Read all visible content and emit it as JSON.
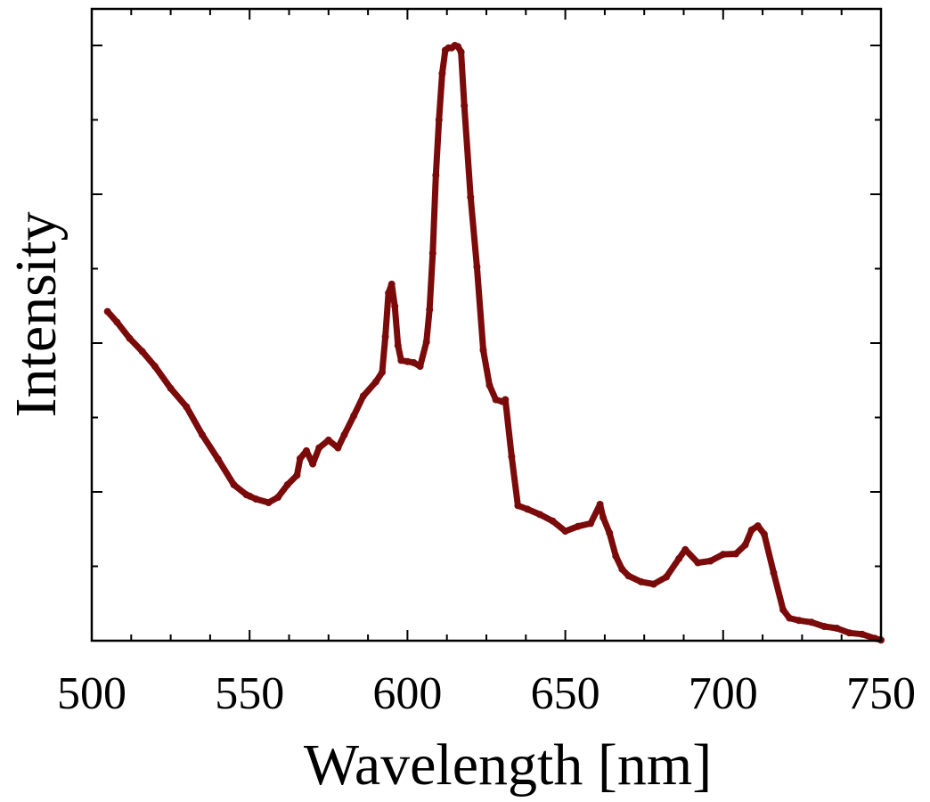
{
  "chart_data": {
    "type": "scatter",
    "title": "",
    "xlabel": "Wavelength [nm]",
    "ylabel": "Intensity",
    "xlim": [
      500,
      750
    ],
    "ylim": [
      0,
      1.0
    ],
    "x_major_ticks": [
      "500",
      "550",
      "600",
      "650",
      "700",
      "750"
    ],
    "x_minor_step": 12.5,
    "y_major_count": 5,
    "y_minor_per_major": 2,
    "grid": false,
    "legend": "none",
    "series_color": "#7b0a0a",
    "series": [
      {
        "x": [
          505,
          508,
          512,
          516,
          520,
          525,
          530,
          535,
          540,
          545,
          549,
          550,
          552,
          556,
          559,
          562,
          565,
          566,
          568,
          570,
          572,
          575,
          578,
          580,
          583,
          586,
          590,
          592,
          593,
          594,
          595,
          596,
          597,
          598,
          600,
          602,
          604,
          606,
          607,
          608,
          609,
          610,
          611,
          612,
          613,
          614,
          615,
          616,
          617,
          618,
          620,
          622,
          624,
          626,
          628,
          630,
          631,
          633,
          635,
          638,
          642,
          646,
          650,
          654,
          658,
          661,
          662,
          664,
          666,
          668,
          670,
          674,
          678,
          682,
          686,
          688,
          692,
          696,
          700,
          704,
          707,
          709,
          711,
          713,
          716,
          719,
          721,
          724,
          728,
          732,
          736,
          740,
          744,
          748,
          750
        ],
        "y": [
          0.553,
          0.535,
          0.508,
          0.486,
          0.461,
          0.424,
          0.393,
          0.346,
          0.305,
          0.262,
          0.245,
          0.243,
          0.238,
          0.232,
          0.241,
          0.262,
          0.278,
          0.306,
          0.319,
          0.297,
          0.324,
          0.337,
          0.324,
          0.346,
          0.378,
          0.411,
          0.435,
          0.451,
          0.511,
          0.584,
          0.599,
          0.562,
          0.496,
          0.471,
          0.469,
          0.467,
          0.461,
          0.502,
          0.556,
          0.651,
          0.782,
          0.875,
          0.953,
          0.992,
          0.996,
          0.996,
          1.0,
          0.998,
          0.989,
          0.899,
          0.745,
          0.628,
          0.488,
          0.429,
          0.405,
          0.402,
          0.405,
          0.309,
          0.227,
          0.221,
          0.212,
          0.201,
          0.184,
          0.192,
          0.197,
          0.229,
          0.207,
          0.181,
          0.142,
          0.12,
          0.109,
          0.099,
          0.095,
          0.107,
          0.138,
          0.153,
          0.131,
          0.134,
          0.145,
          0.146,
          0.161,
          0.186,
          0.193,
          0.179,
          0.114,
          0.052,
          0.038,
          0.034,
          0.031,
          0.024,
          0.021,
          0.013,
          0.011,
          0.004,
          0.001
        ]
      }
    ]
  }
}
